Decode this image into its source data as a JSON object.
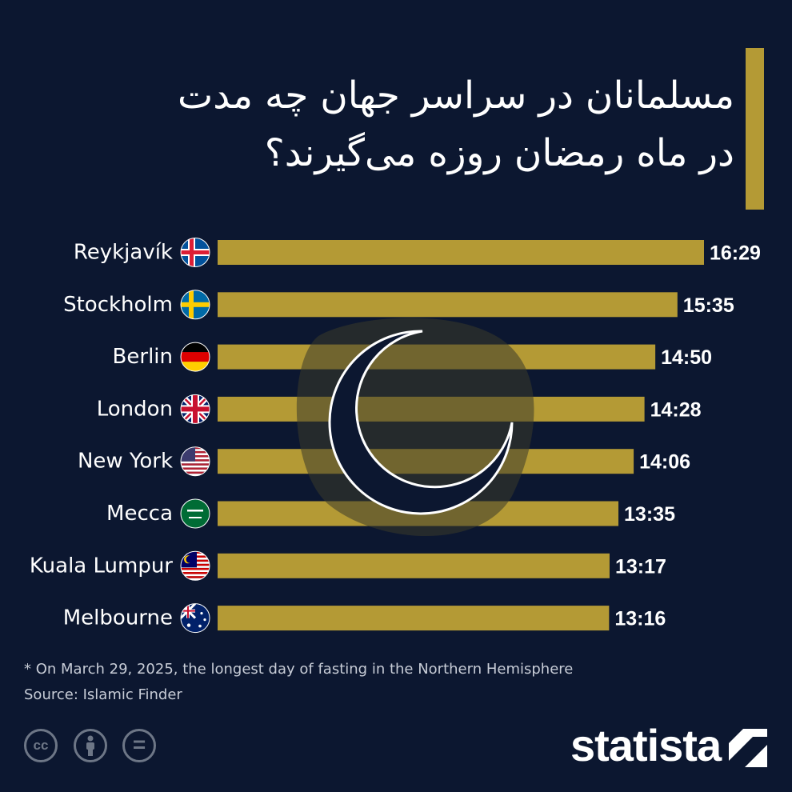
{
  "title": {
    "line1": "مسلمانان در سراسر جهان چه مدت",
    "line2": "در ماه رمضان روزه می‌گیرند؟"
  },
  "colors": {
    "background": "#0c1730",
    "bar": "#b49a35",
    "text": "#ffffff",
    "muted": "#c7ccd6"
  },
  "chart_data": {
    "type": "bar",
    "orientation": "horizontal",
    "categories": [
      "Reykjavík",
      "Stockholm",
      "Berlin",
      "London",
      "New York",
      "Mecca",
      "Kuala Lumpur",
      "Melbourne"
    ],
    "flags": [
      "iceland-flag",
      "sweden-flag",
      "germany-flag",
      "uk-flag",
      "usa-flag",
      "saudi-arabia-flag",
      "malaysia-flag",
      "australia-flag"
    ],
    "labels": [
      "16:29",
      "15:35",
      "14:50",
      "14:28",
      "14:06",
      "13:35",
      "13:17",
      "13:16"
    ],
    "values_minutes": [
      989,
      935,
      890,
      868,
      846,
      815,
      797,
      796
    ],
    "unit": "hours:minutes"
  },
  "footnote": "* On March 29, 2025, the longest day of fasting in the Northern Hemisphere",
  "source": "Source: Islamic Finder",
  "license_icons": [
    "cc-icon",
    "by-icon",
    "nd-icon"
  ],
  "brand": {
    "name": "statista"
  }
}
